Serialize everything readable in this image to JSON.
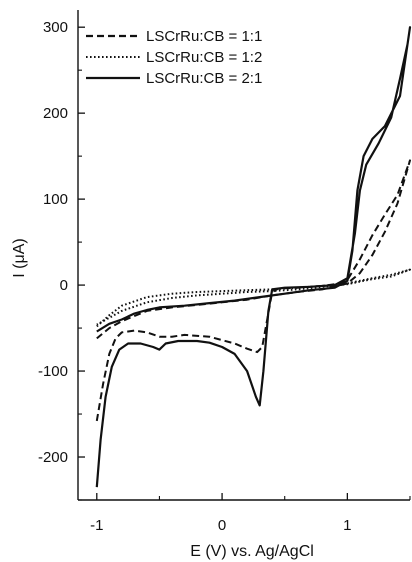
{
  "chart_data": {
    "type": "line",
    "xlabel": "E (V) vs. Ag/AgCl",
    "ylabel": "I (μA)",
    "xlim": [
      -1.15,
      1.5
    ],
    "ylim": [
      -250,
      320
    ],
    "x_ticks": [
      -1,
      0,
      1
    ],
    "y_ticks": [
      -200,
      -100,
      0,
      100,
      200,
      300
    ],
    "legend_position": "top-left",
    "series": [
      {
        "name": "LSCrRu:CB = 1:1",
        "style": "dashed",
        "color": "#111111",
        "points": [
          [
            -1.0,
            -158
          ],
          [
            -0.95,
            -115
          ],
          [
            -0.9,
            -80
          ],
          [
            -0.85,
            -62
          ],
          [
            -0.8,
            -55
          ],
          [
            -0.7,
            -53
          ],
          [
            -0.6,
            -55
          ],
          [
            -0.5,
            -60
          ],
          [
            -0.4,
            -60
          ],
          [
            -0.3,
            -58
          ],
          [
            -0.1,
            -60
          ],
          [
            0.1,
            -68
          ],
          [
            0.2,
            -74
          ],
          [
            0.28,
            -78
          ],
          [
            0.32,
            -72
          ],
          [
            0.36,
            -40
          ],
          [
            0.4,
            -8
          ],
          [
            0.45,
            -4
          ],
          [
            0.6,
            -3
          ],
          [
            0.8,
            -1
          ],
          [
            0.95,
            2
          ],
          [
            1.0,
            6
          ],
          [
            1.1,
            30
          ],
          [
            1.2,
            58
          ],
          [
            1.3,
            82
          ],
          [
            1.4,
            105
          ],
          [
            1.5,
            145
          ],
          [
            1.4,
            95
          ],
          [
            1.3,
            62
          ],
          [
            1.2,
            35
          ],
          [
            1.1,
            14
          ],
          [
            1.0,
            2
          ],
          [
            0.8,
            -5
          ],
          [
            0.6,
            -8
          ],
          [
            0.4,
            -12
          ],
          [
            0.2,
            -17
          ],
          [
            0.0,
            -20
          ],
          [
            -0.2,
            -23
          ],
          [
            -0.4,
            -26
          ],
          [
            -0.6,
            -30
          ],
          [
            -0.8,
            -42
          ],
          [
            -0.9,
            -50
          ],
          [
            -1.0,
            -62
          ]
        ]
      },
      {
        "name": "LSCrRu:CB = 1:2",
        "style": "dotted",
        "color": "#111111",
        "points": [
          [
            -1.0,
            -48
          ],
          [
            -0.9,
            -35
          ],
          [
            -0.8,
            -24
          ],
          [
            -0.6,
            -14
          ],
          [
            -0.4,
            -10
          ],
          [
            -0.2,
            -8
          ],
          [
            0.0,
            -7
          ],
          [
            0.2,
            -6
          ],
          [
            0.4,
            -5
          ],
          [
            0.6,
            -3
          ],
          [
            0.8,
            -1
          ],
          [
            1.0,
            2
          ],
          [
            1.1,
            5
          ],
          [
            1.2,
            8
          ],
          [
            1.35,
            12
          ],
          [
            1.5,
            18
          ],
          [
            1.35,
            10
          ],
          [
            1.2,
            7
          ],
          [
            1.1,
            4
          ],
          [
            1.0,
            1
          ],
          [
            0.8,
            -2
          ],
          [
            0.6,
            -5
          ],
          [
            0.4,
            -7
          ],
          [
            0.2,
            -8
          ],
          [
            0.0,
            -10
          ],
          [
            -0.2,
            -12
          ],
          [
            -0.4,
            -15
          ],
          [
            -0.6,
            -20
          ],
          [
            -0.8,
            -30
          ],
          [
            -0.9,
            -38
          ],
          [
            -1.0,
            -46
          ]
        ]
      },
      {
        "name": "LSCrRu:CB = 2:1",
        "style": "solid",
        "color": "#111111",
        "points": [
          [
            -1.0,
            -235
          ],
          [
            -0.97,
            -180
          ],
          [
            -0.93,
            -130
          ],
          [
            -0.88,
            -95
          ],
          [
            -0.82,
            -75
          ],
          [
            -0.75,
            -68
          ],
          [
            -0.65,
            -68
          ],
          [
            -0.55,
            -72
          ],
          [
            -0.5,
            -75
          ],
          [
            -0.45,
            -68
          ],
          [
            -0.35,
            -65
          ],
          [
            -0.2,
            -65
          ],
          [
            -0.1,
            -67
          ],
          [
            0.0,
            -72
          ],
          [
            0.1,
            -80
          ],
          [
            0.2,
            -100
          ],
          [
            0.27,
            -130
          ],
          [
            0.3,
            -140
          ],
          [
            0.33,
            -100
          ],
          [
            0.37,
            -30
          ],
          [
            0.4,
            -5
          ],
          [
            0.5,
            -3
          ],
          [
            0.7,
            -2
          ],
          [
            0.9,
            0
          ],
          [
            1.0,
            8
          ],
          [
            1.06,
            60
          ],
          [
            1.1,
            110
          ],
          [
            1.15,
            140
          ],
          [
            1.25,
            165
          ],
          [
            1.35,
            195
          ],
          [
            1.42,
            240
          ],
          [
            1.48,
            280
          ],
          [
            1.5,
            300
          ],
          [
            1.42,
            220
          ],
          [
            1.3,
            185
          ],
          [
            1.2,
            170
          ],
          [
            1.13,
            150
          ],
          [
            1.08,
            110
          ],
          [
            1.04,
            40
          ],
          [
            1.0,
            5
          ],
          [
            0.9,
            -3
          ],
          [
            0.7,
            -6
          ],
          [
            0.5,
            -10
          ],
          [
            0.3,
            -14
          ],
          [
            0.1,
            -18
          ],
          [
            -0.1,
            -21
          ],
          [
            -0.3,
            -24
          ],
          [
            -0.5,
            -26
          ],
          [
            -0.6,
            -29
          ],
          [
            -0.7,
            -33
          ],
          [
            -0.8,
            -40
          ],
          [
            -0.9,
            -45
          ],
          [
            -1.0,
            -54
          ]
        ]
      }
    ]
  }
}
